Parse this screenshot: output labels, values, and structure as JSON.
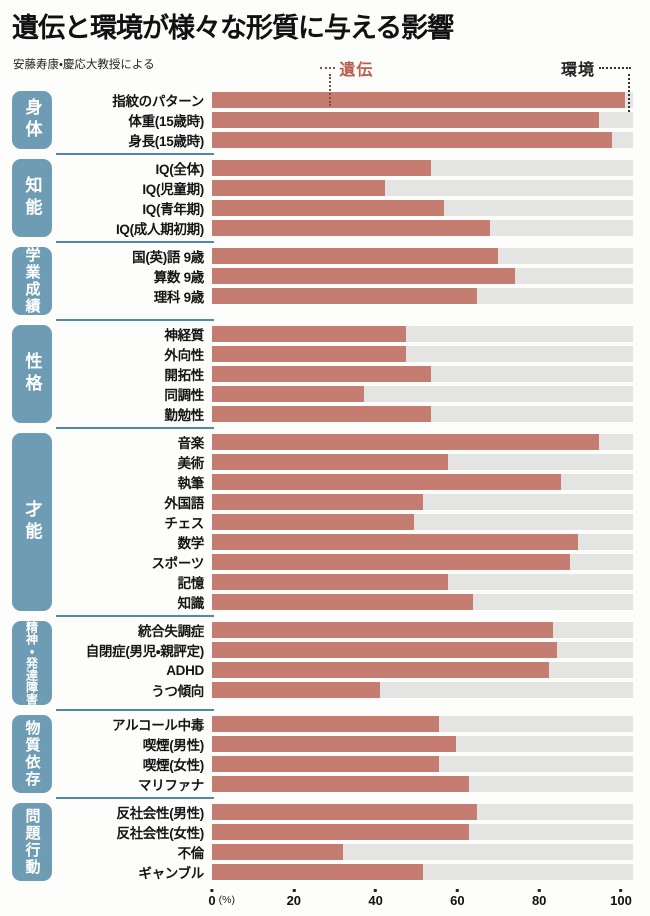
{
  "header": {
    "title": "遺伝と環境が様々な形質に与える影響",
    "subtitle": "安藤寿康・慶応大教授による",
    "legend": {
      "heredity_label": "遺伝",
      "environment_label": "環境"
    }
  },
  "axis": {
    "ticks": [
      0,
      20,
      40,
      60,
      80,
      100
    ],
    "unit": "(%)"
  },
  "colors": {
    "heredity_bar": "#c67d71",
    "environment_bar": "#e4e4e2",
    "category_box": "#6e9cb4",
    "section_divider": "#4e8ba6",
    "heredity_legend_text": "#bb5e52"
  },
  "chart_data": {
    "type": "bar",
    "orientation": "horizontal",
    "stacked_meaning": "red = 遺伝 (heredity %), gray remainder = 環境 (environment %)",
    "xlim": [
      0,
      100
    ],
    "x_ticks": [
      0,
      20,
      40,
      60,
      80,
      100
    ],
    "x_unit": "%",
    "title": "遺伝と環境が様々な形質に与える影響",
    "source": "安藤寿康・慶応大教授による",
    "sections": [
      {
        "name": "身体",
        "rows": [
          {
            "label": "指紋のパターン",
            "value": 98
          },
          {
            "label": "体重(15歳時)",
            "value": 92
          },
          {
            "label": "身長(15歳時)",
            "value": 95
          }
        ]
      },
      {
        "name": "知能",
        "rows": [
          {
            "label": "IQ(全体)",
            "value": 52
          },
          {
            "label": "IQ(児童期)",
            "value": 41
          },
          {
            "label": "IQ(青年期)",
            "value": 55
          },
          {
            "label": "IQ(成人期初期)",
            "value": 66
          }
        ]
      },
      {
        "name": "学業成績",
        "rows": [
          {
            "label": "国(英)語 9歳",
            "value": 68
          },
          {
            "label": "算数 9歳",
            "value": 72
          },
          {
            "label": "理科 9歳",
            "value": 63
          }
        ]
      },
      {
        "name": "性格",
        "rows": [
          {
            "label": "神経質",
            "value": 46
          },
          {
            "label": "外向性",
            "value": 46
          },
          {
            "label": "開拓性",
            "value": 52
          },
          {
            "label": "同調性",
            "value": 36
          },
          {
            "label": "勤勉性",
            "value": 52
          }
        ]
      },
      {
        "name": "才能",
        "rows": [
          {
            "label": "音楽",
            "value": 92
          },
          {
            "label": "美術",
            "value": 56
          },
          {
            "label": "執筆",
            "value": 83
          },
          {
            "label": "外国語",
            "value": 50
          },
          {
            "label": "チェス",
            "value": 48
          },
          {
            "label": "数学",
            "value": 87
          },
          {
            "label": "スポーツ",
            "value": 85
          },
          {
            "label": "記憶",
            "value": 56
          },
          {
            "label": "知識",
            "value": 62
          }
        ]
      },
      {
        "name": "精神・発達障害",
        "rows": [
          {
            "label": "統合失調症",
            "value": 81
          },
          {
            "label": "自閉症(男児・親評定)",
            "value": 82
          },
          {
            "label": "ADHD",
            "value": 80
          },
          {
            "label": "うつ傾向",
            "value": 40
          }
        ]
      },
      {
        "name": "物質依存",
        "rows": [
          {
            "label": "アルコール中毒",
            "value": 54
          },
          {
            "label": "喫煙(男性)",
            "value": 58
          },
          {
            "label": "喫煙(女性)",
            "value": 54
          },
          {
            "label": "マリファナ",
            "value": 61
          }
        ]
      },
      {
        "name": "問題行動",
        "rows": [
          {
            "label": "反社会性(男性)",
            "value": 63
          },
          {
            "label": "反社会性(女性)",
            "value": 61
          },
          {
            "label": "不倫",
            "value": 31
          },
          {
            "label": "ギャンブル",
            "value": 50
          }
        ]
      }
    ]
  }
}
